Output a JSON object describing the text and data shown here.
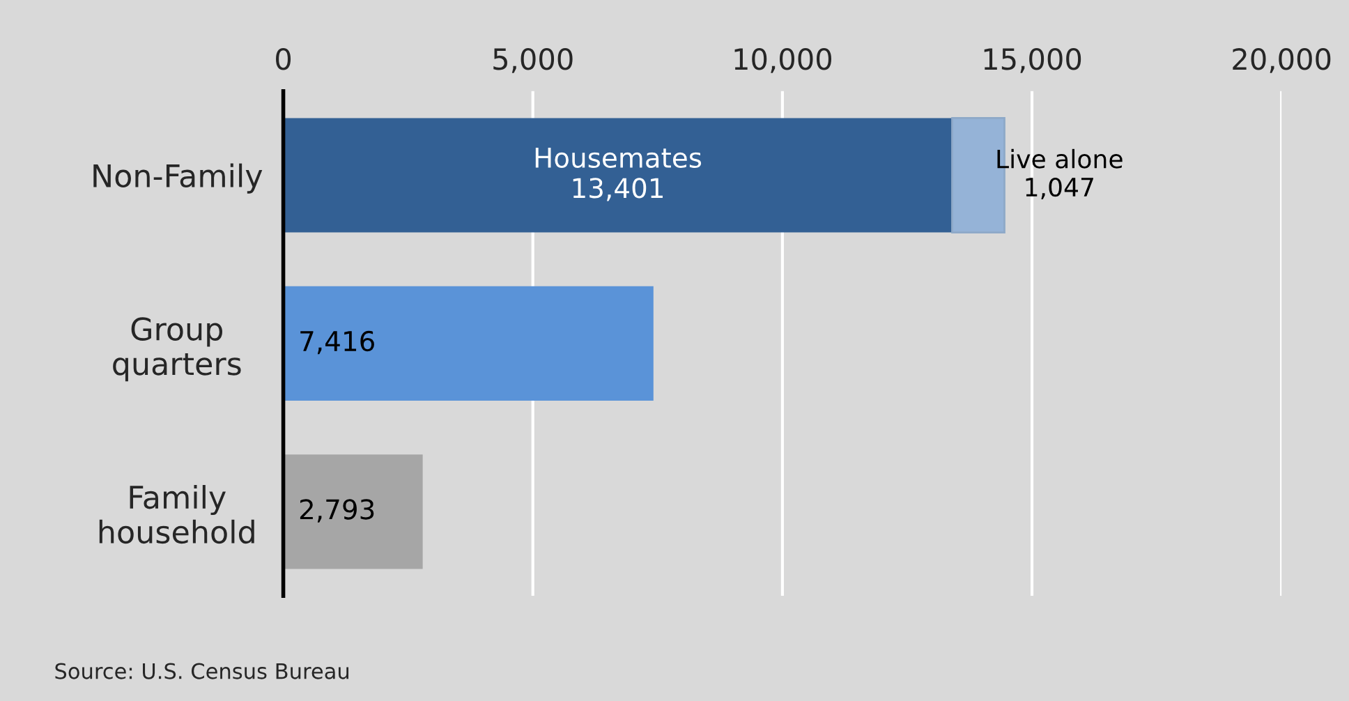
{
  "chart_data": {
    "type": "bar",
    "orientation": "horizontal",
    "stacked": true,
    "categories": [
      "Non-Family",
      "Group\nquarters",
      "Family\nhousehold"
    ],
    "series": [
      {
        "colors": [
          "#336094",
          "#5a93d8",
          "#a6a6a6"
        ],
        "values": [
          13401,
          7416,
          2793
        ],
        "value_labels": [
          "Housemates\n13,401",
          "7,416",
          "2,793"
        ]
      },
      {
        "color": "#95b3d7",
        "values": [
          1047,
          null,
          null
        ],
        "value_labels": [
          "Live alone\n1,047",
          null,
          null
        ]
      }
    ],
    "xlim": [
      0,
      20000
    ],
    "xticks": [
      {
        "value": 0,
        "label": "0"
      },
      {
        "value": 5000,
        "label": "5,000"
      },
      {
        "value": 10000,
        "label": "10,000"
      },
      {
        "value": 15000,
        "label": "15,000"
      },
      {
        "value": 20000,
        "label": "20,000"
      }
    ],
    "grid": "x",
    "annotations": [
      "Source: U.S. Census Bureau"
    ]
  }
}
